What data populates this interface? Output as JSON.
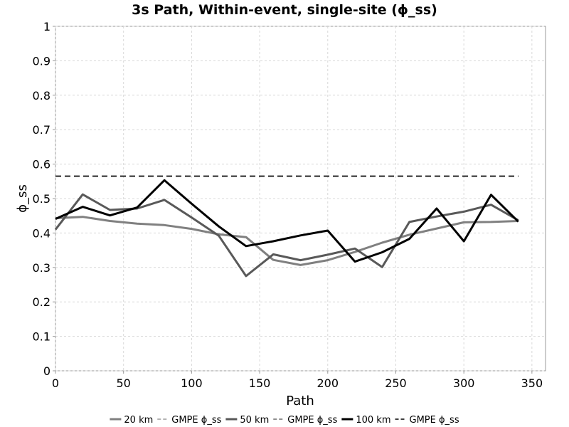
{
  "chart_data": {
    "type": "line",
    "title": "3s Path, Within-event, single-site (ϕ_ss)",
    "xlabel": "Path",
    "ylabel": "ϕ_ss",
    "xlim": [
      0,
      360
    ],
    "ylim": [
      0,
      1
    ],
    "xticks": [
      "0",
      "50",
      "100",
      "150",
      "200",
      "250",
      "300",
      "350"
    ],
    "xtick_values": [
      0,
      50,
      100,
      150,
      200,
      250,
      300,
      350
    ],
    "yticks": [
      "0",
      "0.1",
      "0.2",
      "0.3",
      "0.4",
      "0.5",
      "0.6",
      "0.7",
      "0.8",
      "0.9",
      "1"
    ],
    "ytick_values": [
      0,
      0.1,
      0.2,
      0.3,
      0.4,
      0.5,
      0.6,
      0.7,
      0.8,
      0.9,
      1
    ],
    "grid": true,
    "legend_position": "bottom",
    "series": [
      {
        "name": "20 km",
        "color": "#808080",
        "width": 3,
        "dash": "none",
        "x": [
          0,
          20,
          40,
          60,
          80,
          100,
          120,
          140,
          160,
          180,
          200,
          220,
          240,
          260,
          280,
          300,
          320,
          340
        ],
        "y": [
          0.443,
          0.447,
          0.435,
          0.427,
          0.423,
          0.412,
          0.396,
          0.388,
          0.322,
          0.307,
          0.321,
          0.345,
          0.372,
          0.395,
          0.413,
          0.431,
          0.432,
          0.435
        ]
      },
      {
        "name": "GMPE ϕ_ss",
        "color": "#9a9a9a",
        "width": 1.5,
        "dash": "8,5",
        "x": [
          0,
          340
        ],
        "y": [
          0.565,
          0.565
        ]
      },
      {
        "name": "50 km",
        "color": "#595959",
        "width": 3,
        "dash": "none",
        "x": [
          0,
          20,
          40,
          60,
          80,
          100,
          120,
          140,
          160,
          180,
          200,
          220,
          240,
          260,
          280,
          300,
          320,
          340
        ],
        "y": [
          0.41,
          0.512,
          0.467,
          0.471,
          0.496,
          0.445,
          0.392,
          0.275,
          0.338,
          0.321,
          0.337,
          0.355,
          0.301,
          0.432,
          0.448,
          0.462,
          0.482,
          0.437
        ]
      },
      {
        "name": "GMPE ϕ_ss",
        "color": "#6a6a6a",
        "width": 1.5,
        "dash": "8,5",
        "x": [
          0,
          340
        ],
        "y": [
          0.565,
          0.565
        ]
      },
      {
        "name": "100 km",
        "color": "#000000",
        "width": 3,
        "dash": "none",
        "x": [
          0,
          20,
          40,
          60,
          80,
          100,
          120,
          140,
          160,
          180,
          200,
          220,
          240,
          260,
          280,
          300,
          320,
          340
        ],
        "y": [
          0.441,
          0.476,
          0.451,
          0.474,
          0.553,
          0.485,
          0.419,
          0.362,
          0.376,
          0.393,
          0.407,
          0.317,
          0.344,
          0.383,
          0.471,
          0.376,
          0.511,
          0.433
        ]
      },
      {
        "name": "GMPE ϕ_ss",
        "color": "#000000",
        "width": 1.5,
        "dash": "8,5",
        "x": [
          0,
          340
        ],
        "y": [
          0.565,
          0.565
        ]
      }
    ]
  }
}
